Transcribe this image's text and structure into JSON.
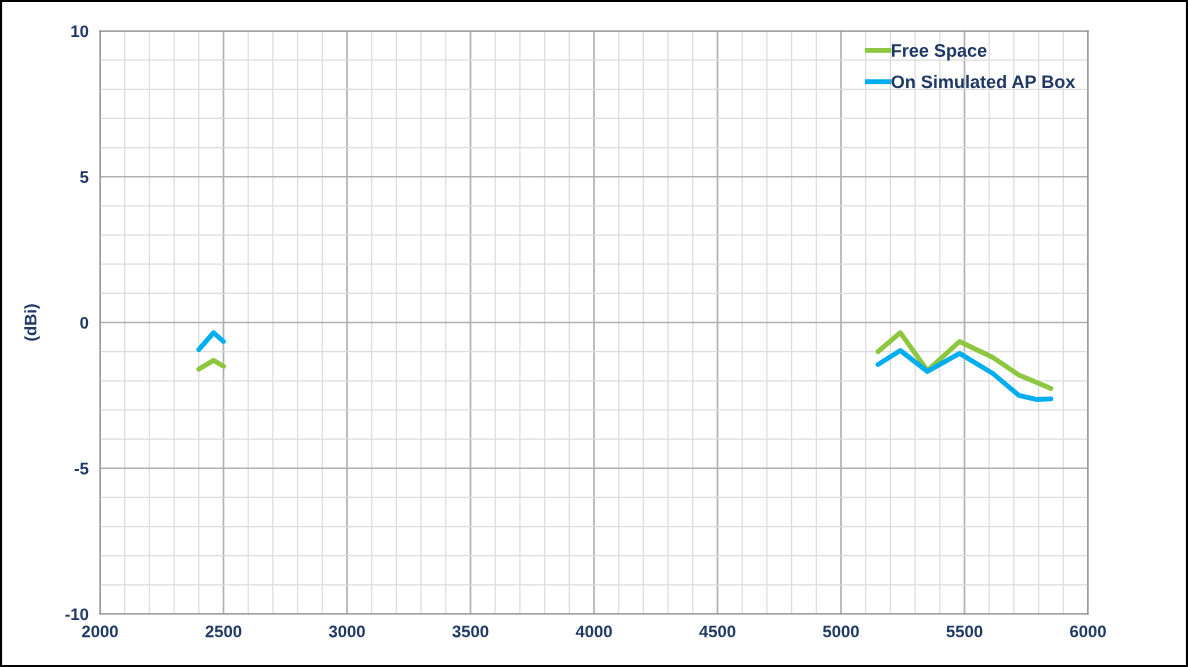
{
  "chart_data": {
    "type": "line",
    "ylabel": "(dBi)",
    "x": [
      2400,
      2460,
      2500,
      5150,
      5240,
      5350,
      5480,
      5615,
      5720,
      5790,
      5850
    ],
    "series": [
      {
        "name": "Free Space",
        "color": "#8dc63f",
        "values": [
          -1.6,
          -1.3,
          -1.5,
          -1.0,
          -0.35,
          -1.65,
          -0.65,
          -1.2,
          -1.8,
          -2.05,
          -2.26
        ]
      },
      {
        "name": "On Simulated AP Box",
        "color": "#00aeef",
        "values": [
          -0.93,
          -0.35,
          -0.65,
          -1.44,
          -0.96,
          -1.68,
          -1.06,
          -1.75,
          -2.5,
          -2.64,
          -2.62
        ]
      }
    ],
    "xlim": [
      2000,
      6000
    ],
    "ylim": [
      -10,
      10
    ],
    "xticks": [
      2000,
      {
        "value": 2100,
        "label": null
      },
      {
        "value": 2200,
        "label": null
      },
      {
        "value": 2300,
        "label": null
      },
      {
        "value": 2400,
        "label": null
      },
      2500,
      {
        "value": 2600,
        "label": null
      },
      {
        "value": 2700,
        "label": null
      },
      {
        "value": 2800,
        "label": null
      },
      {
        "value": 2900,
        "label": null
      },
      3000,
      {
        "value": 3100,
        "label": null
      },
      {
        "value": 3200,
        "label": null
      },
      {
        "value": 3300,
        "label": null
      },
      {
        "value": 3400,
        "label": null
      },
      3500,
      {
        "value": 3600,
        "label": null
      },
      {
        "value": 3700,
        "label": null
      },
      {
        "value": 3800,
        "label": null
      },
      {
        "value": 3900,
        "label": null
      },
      4000,
      {
        "value": 4100,
        "label": null
      },
      {
        "value": 4200,
        "label": null
      },
      {
        "value": 4300,
        "label": null
      },
      {
        "value": 4400,
        "label": null
      },
      4500,
      {
        "value": 4600,
        "label": null
      },
      {
        "value": 4700,
        "label": null
      },
      {
        "value": 4800,
        "label": null
      },
      {
        "value": 4900,
        "label": null
      },
      5000,
      {
        "value": 5100,
        "label": null
      },
      {
        "value": 5200,
        "label": null
      },
      {
        "value": 5300,
        "label": null
      },
      {
        "value": 5400,
        "label": null
      },
      5500,
      {
        "value": 5600,
        "label": null
      },
      {
        "value": 5700,
        "label": null
      },
      {
        "value": 5800,
        "label": null
      },
      {
        "value": 5900,
        "label": null
      },
      6000
    ],
    "yticks": [
      -10,
      {
        "value": -9,
        "label": null
      },
      {
        "value": -8,
        "label": null
      },
      {
        "value": -7,
        "label": null
      },
      {
        "value": -6,
        "label": null
      },
      -5,
      {
        "value": -4,
        "label": null
      },
      {
        "value": -3,
        "label": null
      },
      {
        "value": -2,
        "label": null
      },
      {
        "value": -1,
        "label": null
      },
      0,
      {
        "value": 1,
        "label": null
      },
      {
        "value": 2,
        "label": null
      },
      {
        "value": 3,
        "label": null
      },
      {
        "value": 4,
        "label": null
      },
      5,
      {
        "value": 6,
        "label": null
      },
      {
        "value": 7,
        "label": null
      },
      {
        "value": 8,
        "label": null
      },
      {
        "value": 9,
        "label": null
      },
      10
    ],
    "grid": true,
    "legend": "top right"
  }
}
